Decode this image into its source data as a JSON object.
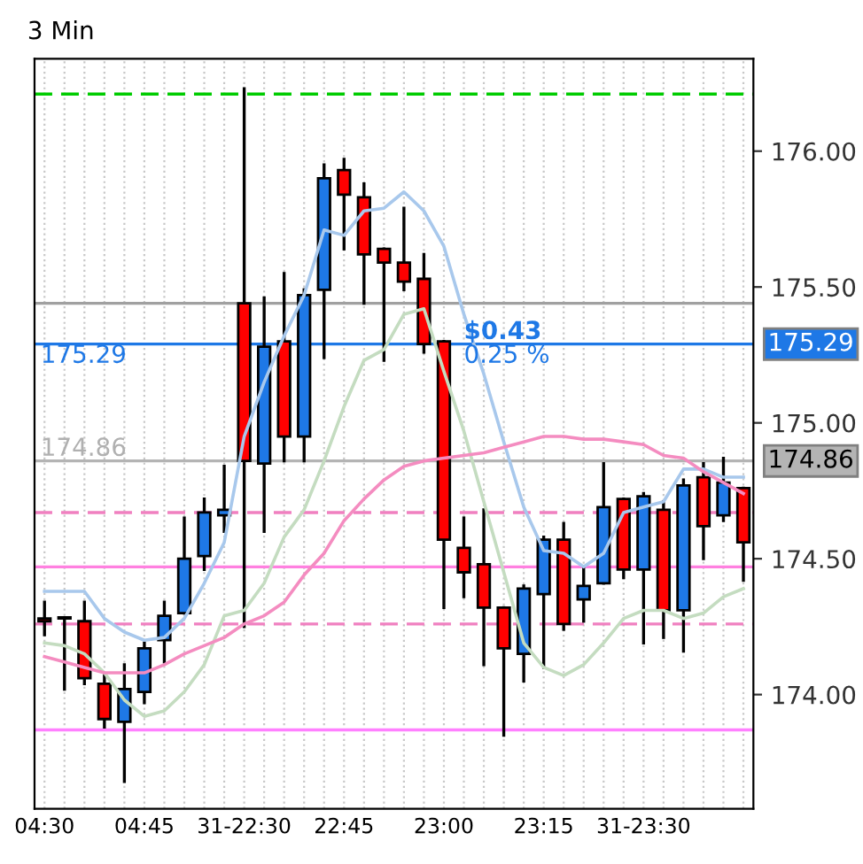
{
  "chart_data": {
    "type": "candlestick",
    "title": "3 Min",
    "categories": [
      "04:30",
      null,
      null,
      null,
      null,
      "04:45",
      null,
      null,
      null,
      null,
      "31-22:30",
      null,
      null,
      null,
      null,
      "22:45",
      null,
      null,
      null,
      null,
      "23:00",
      null,
      null,
      null,
      null,
      "23:15",
      null,
      null,
      null,
      null,
      "31-23:30",
      null,
      null,
      null,
      null,
      null
    ],
    "ohlc": [
      [
        174.28,
        174.34,
        174.22,
        174.27
      ],
      [
        174.28,
        174.28,
        174.02,
        174.28
      ],
      [
        174.27,
        174.34,
        174.04,
        174.06
      ],
      [
        174.04,
        174.07,
        173.88,
        173.91
      ],
      [
        173.9,
        174.11,
        173.68,
        174.02
      ],
      [
        174.01,
        174.19,
        173.97,
        174.17
      ],
      [
        174.2,
        174.34,
        174.12,
        174.29
      ],
      [
        174.3,
        174.65,
        174.3,
        174.5
      ],
      [
        174.51,
        174.72,
        174.46,
        174.67
      ],
      [
        174.66,
        174.84,
        174.6,
        174.68
      ],
      [
        175.44,
        176.23,
        174.25,
        174.86
      ],
      [
        174.85,
        175.46,
        174.6,
        175.28
      ],
      [
        175.3,
        175.55,
        174.86,
        174.95
      ],
      [
        174.95,
        175.49,
        174.86,
        175.47
      ],
      [
        175.49,
        175.95,
        175.24,
        175.9
      ],
      [
        175.93,
        175.97,
        175.64,
        175.84
      ],
      [
        175.83,
        175.88,
        175.44,
        175.62
      ],
      [
        175.64,
        175.64,
        175.23,
        175.59
      ],
      [
        175.59,
        175.79,
        175.49,
        175.52
      ],
      [
        175.53,
        175.62,
        175.26,
        175.29
      ],
      [
        175.3,
        175.3,
        174.32,
        174.57
      ],
      [
        174.54,
        174.65,
        174.36,
        174.45
      ],
      [
        174.48,
        174.68,
        174.11,
        174.32
      ],
      [
        174.32,
        174.32,
        173.85,
        174.17
      ],
      [
        174.15,
        174.4,
        174.05,
        174.39
      ],
      [
        174.37,
        174.58,
        174.1,
        174.57
      ],
      [
        174.57,
        174.63,
        174.24,
        174.26
      ],
      [
        174.35,
        174.47,
        174.27,
        174.4
      ],
      [
        174.41,
        174.85,
        174.41,
        174.69
      ],
      [
        174.72,
        174.72,
        174.43,
        174.46
      ],
      [
        174.46,
        174.74,
        174.19,
        174.73
      ],
      [
        174.68,
        174.71,
        174.21,
        174.31
      ],
      [
        174.31,
        174.79,
        174.16,
        174.77
      ],
      [
        174.8,
        174.85,
        174.5,
        174.62
      ],
      [
        174.66,
        174.87,
        174.64,
        174.78
      ],
      [
        174.76,
        174.76,
        174.42,
        174.56
      ]
    ],
    "colors": [
      "#ff0000",
      "#1e78e6",
      "#ff0000",
      "#ff0000",
      "#1e78e6",
      "#1e78e6",
      "#1e78e6",
      "#1e78e6",
      "#1e78e6",
      "#1e78e6",
      "#ff0000",
      "#1e78e6",
      "#ff0000",
      "#1e78e6",
      "#1e78e6",
      "#ff0000",
      "#ff0000",
      "#ff0000",
      "#ff0000",
      "#ff0000",
      "#ff0000",
      "#ff0000",
      "#ff0000",
      "#ff0000",
      "#1e78e6",
      "#1e78e6",
      "#ff0000",
      "#1e78e6",
      "#1e78e6",
      "#ff0000",
      "#1e78e6",
      "#ff0000",
      "#1e78e6",
      "#ff0000",
      "#1e78e6",
      "#ff0000"
    ],
    "series": [
      {
        "type": "line",
        "color": "#a8c8ec",
        "values": [
          174.38,
          174.38,
          174.38,
          174.28,
          174.23,
          174.2,
          174.21,
          174.28,
          174.41,
          174.56,
          174.95,
          175.15,
          175.32,
          175.47,
          175.71,
          175.69,
          175.78,
          175.79,
          175.85,
          175.78,
          175.65,
          175.4,
          175.18,
          174.93,
          174.69,
          174.53,
          174.52,
          174.47,
          174.52,
          174.67,
          174.69,
          174.71,
          174.83,
          174.83,
          174.8,
          174.8
        ]
      },
      {
        "type": "line",
        "color": "#c4dcc0",
        "values": [
          174.19,
          174.18,
          174.15,
          174.08,
          173.98,
          173.92,
          173.94,
          174.01,
          174.11,
          174.29,
          174.31,
          174.41,
          174.58,
          174.68,
          174.86,
          175.06,
          175.23,
          175.27,
          175.4,
          175.42,
          175.19,
          174.97,
          174.71,
          174.45,
          174.19,
          174.1,
          174.07,
          174.11,
          174.19,
          174.28,
          174.31,
          174.31,
          174.28,
          174.3,
          174.36,
          174.39
        ]
      },
      {
        "type": "line",
        "color": "#f48cc0",
        "values": [
          174.14,
          174.12,
          174.1,
          174.08,
          174.08,
          174.08,
          174.11,
          174.15,
          174.18,
          174.21,
          174.26,
          174.29,
          174.34,
          174.44,
          174.52,
          174.64,
          174.72,
          174.79,
          174.84,
          174.86,
          174.87,
          174.88,
          174.89,
          174.91,
          174.93,
          174.95,
          174.95,
          174.94,
          174.94,
          174.93,
          174.92,
          174.88,
          174.87,
          174.82,
          174.78,
          174.74
        ]
      }
    ],
    "ylim": [
      173.58,
      176.34
    ],
    "yticks": [
      {
        "value": 174,
        "label": "174.00"
      },
      {
        "value": 174.5,
        "label": "174.50"
      },
      {
        "value": 175,
        "label": "175.00"
      },
      {
        "value": 175.5,
        "label": "175.50"
      },
      {
        "value": 176,
        "label": "176.00"
      }
    ],
    "ref_lines": [
      {
        "axis": "y",
        "value": 176.21,
        "color": "#00cc00",
        "line_style": "dashed"
      },
      {
        "axis": "y",
        "value": 175.44,
        "color": "#a0a0a0",
        "line_style": "solid"
      },
      {
        "axis": "y",
        "value": 175.29,
        "color": "#1e78e6",
        "line_style": "solid",
        "label": "175.29"
      },
      {
        "axis": "y",
        "value": 174.86,
        "color": "#b4b4b4",
        "line_style": "solid",
        "label": "174.86"
      },
      {
        "axis": "y",
        "value": 174.67,
        "color": "#f080c0",
        "line_style": "dashed"
      },
      {
        "axis": "y",
        "value": 174.47,
        "color": "#ff80e0",
        "line_style": "solid"
      },
      {
        "axis": "y",
        "value": 174.26,
        "color": "#f080c0",
        "line_style": "dashed"
      },
      {
        "axis": "y",
        "value": 173.87,
        "color": "#ff80ff",
        "line_style": "solid"
      }
    ],
    "annotations": [
      {
        "text": "$0.43",
        "y": 175.29
      },
      {
        "text": "0.25 %",
        "y": 175.29
      },
      {
        "text": "175.29",
        "y": 175.29
      },
      {
        "text": "174.86",
        "y": 174.86
      }
    ],
    "legend": false,
    "grid": "x"
  }
}
